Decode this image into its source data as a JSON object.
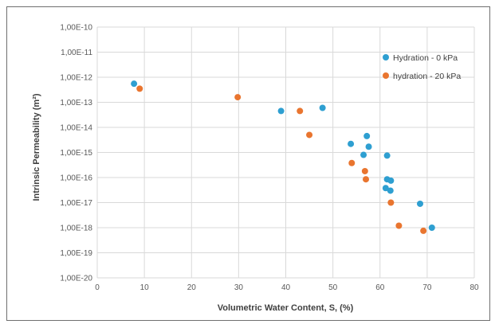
{
  "chart_data": {
    "type": "scatter",
    "xlabel": "Volumetric Water Content, S, (%)",
    "ylabel": "Intrinsic Permeability (m²)",
    "x_ticks": [
      "0",
      "10",
      "20",
      "30",
      "40",
      "50",
      "60",
      "70",
      "80"
    ],
    "y_ticks": [
      "1,00E-10",
      "1,00E-11",
      "1,00E-12",
      "1,00E-13",
      "1,00E-14",
      "1,00E-15",
      "1,00E-16",
      "1,00E-17",
      "1,00E-18",
      "1,00E-19",
      "1,00E-20"
    ],
    "xlim": [
      0,
      80
    ],
    "ylim": [
      1e-20,
      1e-10
    ],
    "yscale": "log",
    "grid": true,
    "legend_position": "top-right",
    "series": [
      {
        "name": "Hydration - 0 kPa",
        "color": "#2e9fd1",
        "points": [
          {
            "x": 7.8,
            "y": 5.5e-13
          },
          {
            "x": 39.0,
            "y": 4.5e-14
          },
          {
            "x": 47.8,
            "y": 6e-14
          },
          {
            "x": 53.8,
            "y": 2.2e-15
          },
          {
            "x": 56.5,
            "y": 8e-16
          },
          {
            "x": 57.2,
            "y": 4.5e-15
          },
          {
            "x": 57.6,
            "y": 1.7e-15
          },
          {
            "x": 61.5,
            "y": 7.5e-16
          },
          {
            "x": 61.5,
            "y": 8.5e-17
          },
          {
            "x": 61.2,
            "y": 3.8e-17
          },
          {
            "x": 62.3,
            "y": 7.5e-17
          },
          {
            "x": 62.2,
            "y": 3e-17
          },
          {
            "x": 68.5,
            "y": 9e-18
          },
          {
            "x": 71.0,
            "y": 1e-18
          }
        ]
      },
      {
        "name": "hydration - 20 kPa",
        "color": "#e9752f",
        "points": [
          {
            "x": 9.0,
            "y": 3.5e-13
          },
          {
            "x": 29.8,
            "y": 1.6e-13
          },
          {
            "x": 43.0,
            "y": 4.5e-14
          },
          {
            "x": 45.0,
            "y": 5e-15
          },
          {
            "x": 54.0,
            "y": 3.8e-16
          },
          {
            "x": 56.8,
            "y": 1.8e-16
          },
          {
            "x": 57.0,
            "y": 8.5e-17
          },
          {
            "x": 62.3,
            "y": 1e-17
          },
          {
            "x": 64.0,
            "y": 1.2e-18
          },
          {
            "x": 69.2,
            "y": 7.5e-19
          }
        ]
      }
    ]
  }
}
